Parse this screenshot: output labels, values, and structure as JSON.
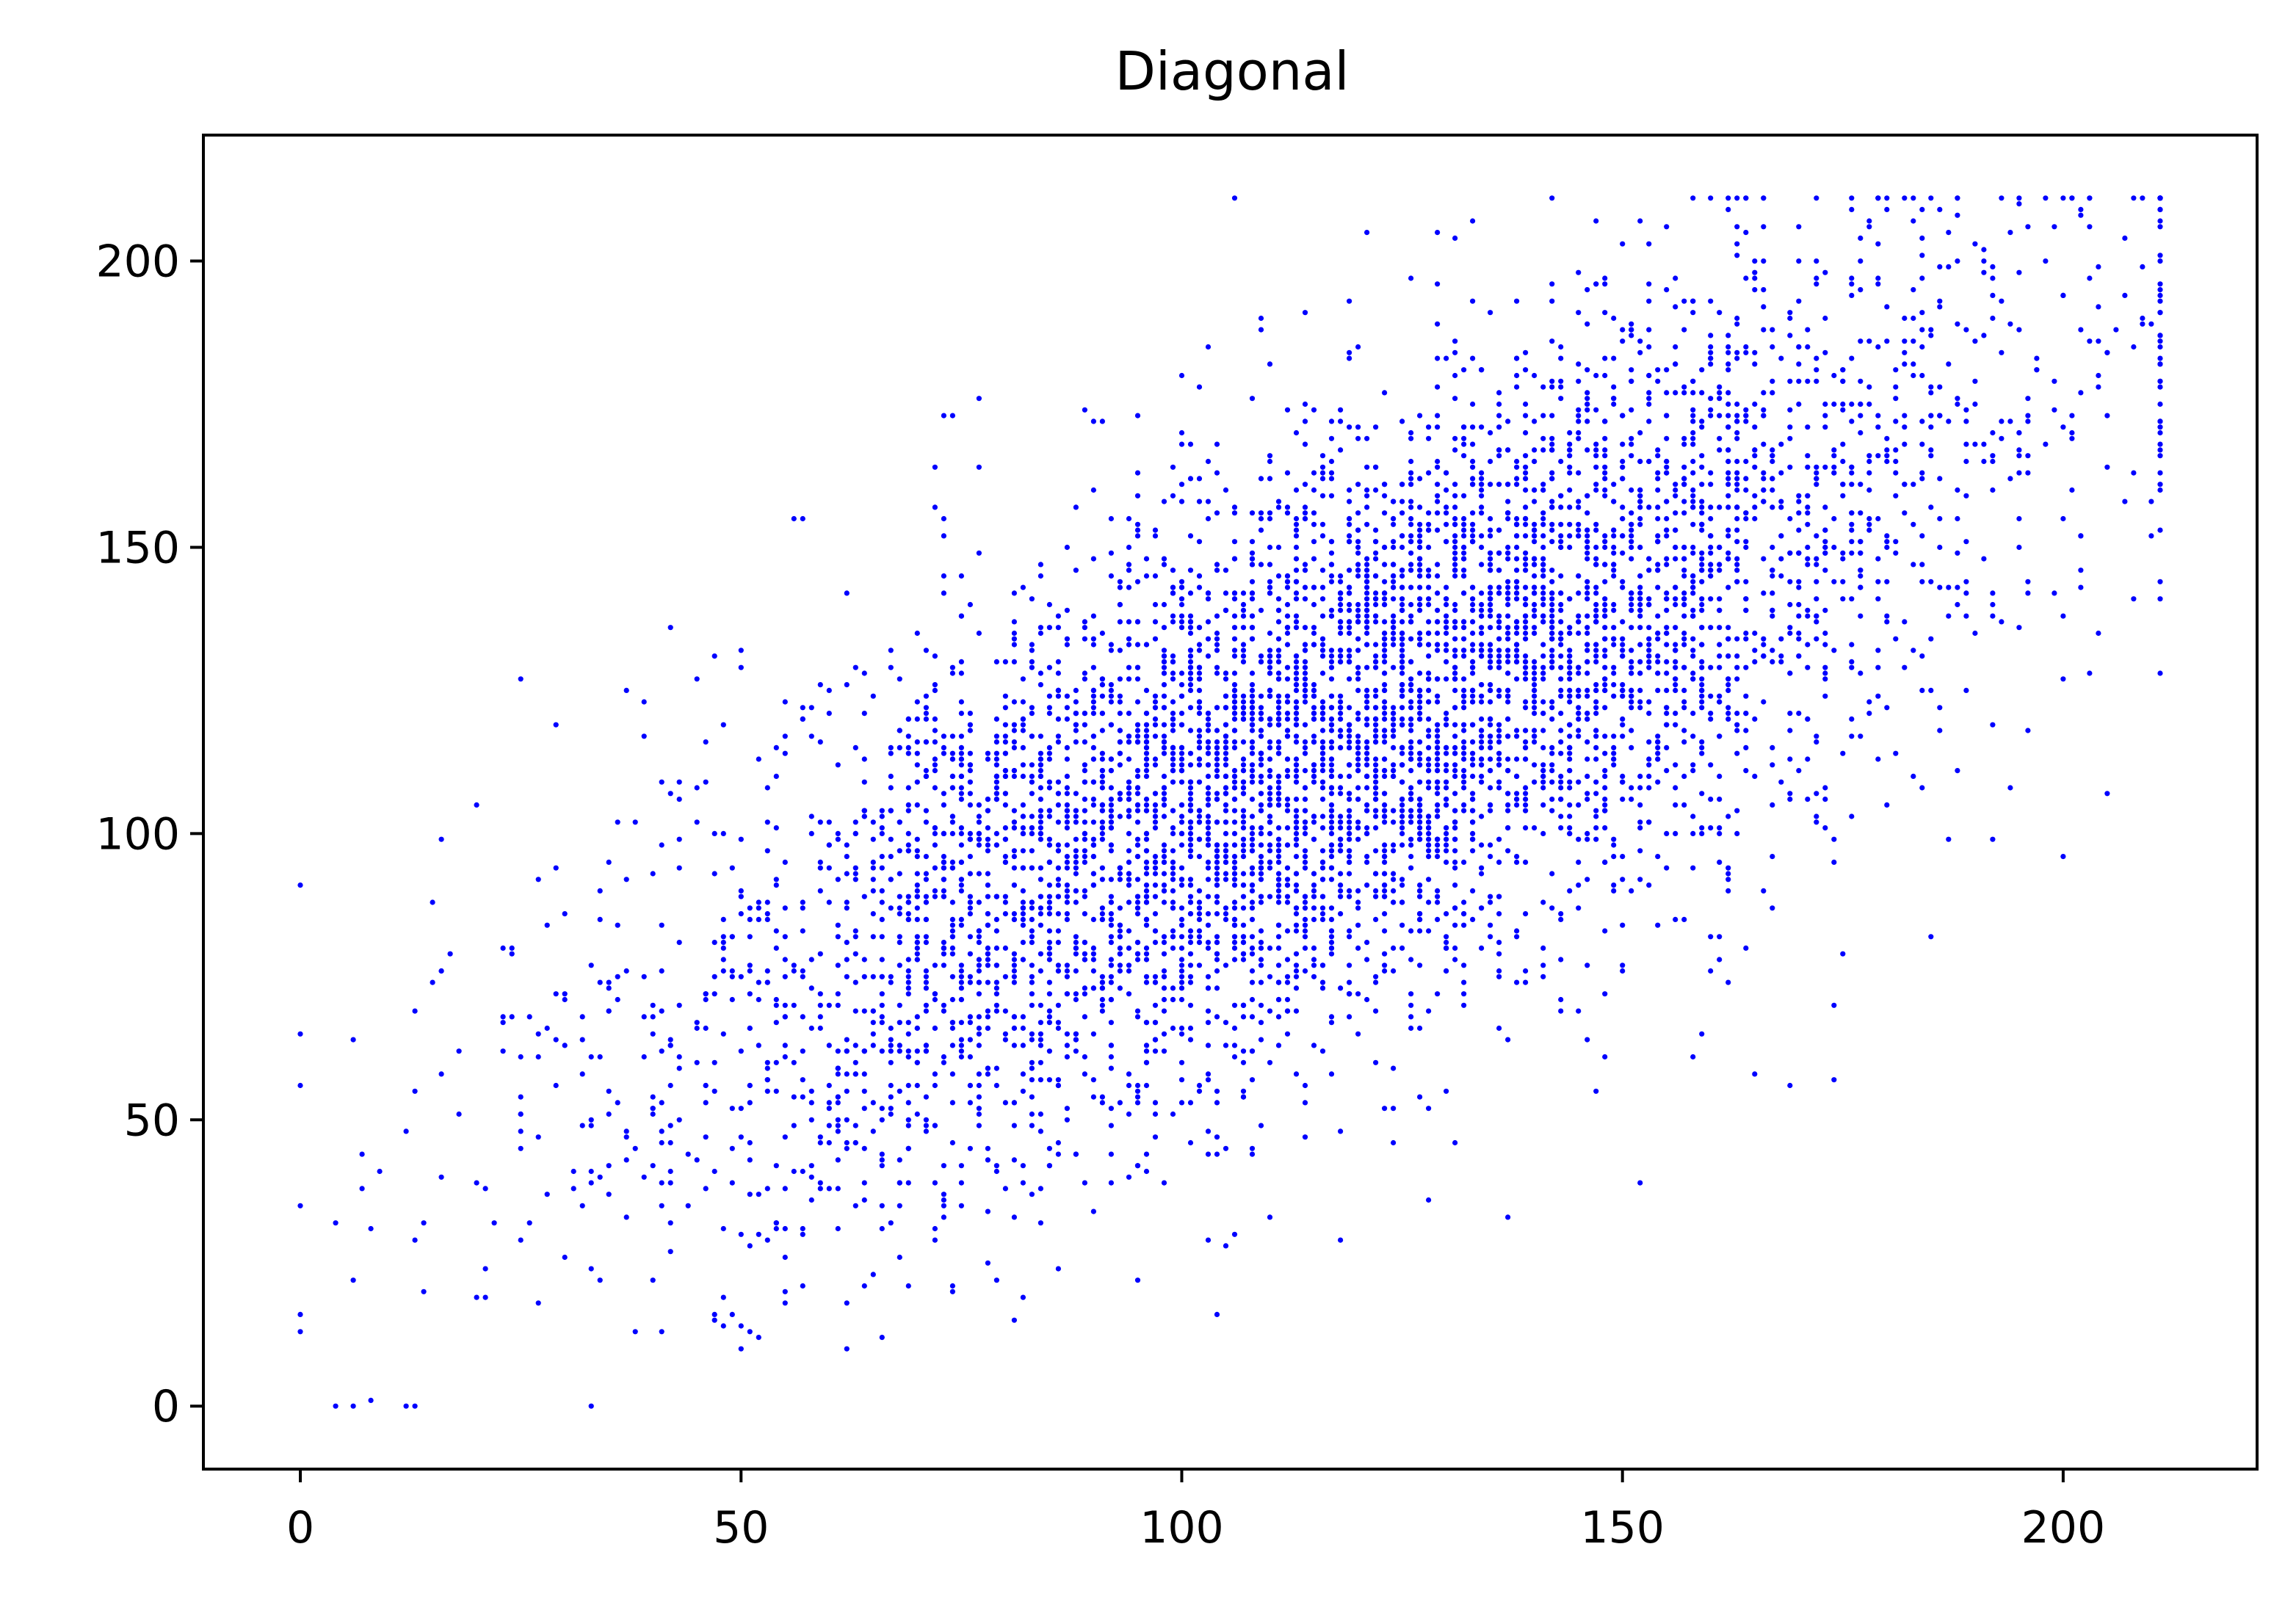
{
  "chart_data": {
    "type": "scatter",
    "title": "Diagonal",
    "xlabel": "",
    "ylabel": "",
    "xlim": [
      -11,
      222
    ],
    "ylim": [
      -11,
      222
    ],
    "xticks": [
      0,
      50,
      100,
      150,
      200
    ],
    "yticks": [
      0,
      50,
      100,
      150,
      200
    ],
    "grid": false,
    "marker_color": "#0000ff",
    "distribution": {
      "points": 6000,
      "x_min": 0,
      "x_max": 211,
      "y_min": 0,
      "y_max": 211,
      "x_mean": 118,
      "y_mean": 118,
      "sd": 38,
      "correlation": 0.72,
      "value_step": 1
    },
    "series": [
      {
        "values": [
          [
            0,
            91
          ],
          [
            33,
            0
          ],
          [
            13,
            55
          ],
          [
            15,
            88
          ],
          [
            17,
            79
          ],
          [
            13,
            29
          ],
          [
            25,
            127
          ],
          [
            29,
            119
          ],
          [
            42,
            136
          ],
          [
            47,
            131
          ],
          [
            57,
            155
          ],
          [
            81,
            15
          ],
          [
            104,
            16
          ],
          [
            137,
            33
          ],
          [
            152,
            39
          ],
          [
            166,
            211
          ],
          [
            188,
            208
          ],
          [
            199,
            206
          ],
          [
            211,
            160
          ],
          [
            205,
            107
          ],
          [
            194,
            108
          ],
          [
            192,
            99
          ],
          [
            185,
            82
          ],
          [
            175,
            79
          ],
          [
            174,
            70
          ],
          [
            174,
            57
          ],
          [
            169,
            56
          ],
          [
            165,
            58
          ],
          [
            158,
            61
          ],
          [
            148,
            61
          ],
          [
            131,
            204
          ],
          [
            114,
            191
          ],
          [
            109,
            190
          ],
          [
            100,
            180
          ],
          [
            90,
            172
          ],
          [
            72,
            164
          ],
          [
            62,
            18
          ],
          [
            38,
            13
          ],
          [
            41,
            13
          ],
          [
            118,
            29
          ],
          [
            110,
            33
          ],
          [
            124,
            46
          ],
          [
            128,
            52
          ],
          [
            145,
            69
          ],
          [
            160,
            76
          ]
        ]
      }
    ]
  }
}
